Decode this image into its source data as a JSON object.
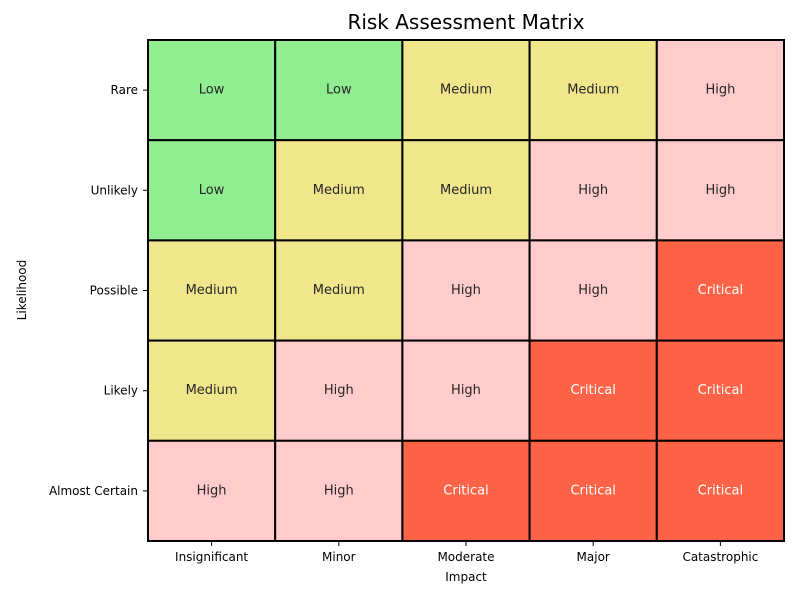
{
  "chart_data": {
    "type": "heatmap",
    "title": "Risk Assessment Matrix",
    "xlabel": "Impact",
    "ylabel": "Likelihood",
    "x_categories": [
      "Insignificant",
      "Minor",
      "Moderate",
      "Major",
      "Catastrophic"
    ],
    "y_categories": [
      "Rare",
      "Unlikely",
      "Possible",
      "Likely",
      "Almost Certain"
    ],
    "cells": [
      [
        "Low",
        "Low",
        "Medium",
        "Medium",
        "High"
      ],
      [
        "Low",
        "Medium",
        "Medium",
        "High",
        "High"
      ],
      [
        "Medium",
        "Medium",
        "High",
        "High",
        "Critical"
      ],
      [
        "Medium",
        "High",
        "High",
        "Critical",
        "Critical"
      ],
      [
        "High",
        "High",
        "Critical",
        "Critical",
        "Critical"
      ]
    ],
    "level_colors": {
      "Low": "#90ee90",
      "Medium": "#f0e68c",
      "High": "#ffcccb",
      "Critical": "#ff6347"
    },
    "text_colors": {
      "Low": "#262626",
      "Medium": "#262626",
      "High": "#262626",
      "Critical": "#ffffff"
    },
    "grid": true,
    "legend": "none"
  }
}
